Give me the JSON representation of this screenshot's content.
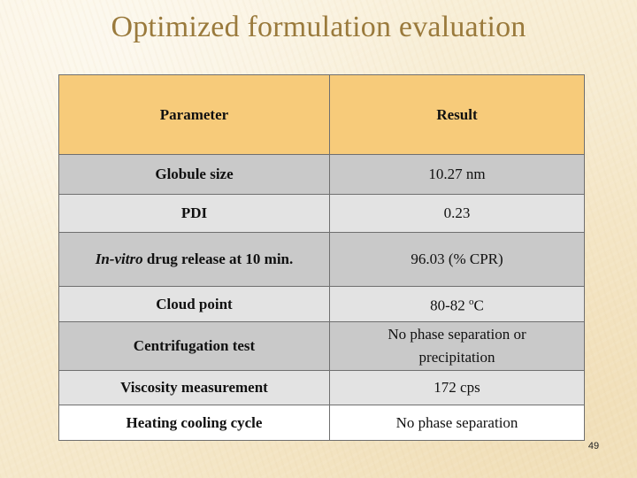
{
  "slide": {
    "title": "Optimized formulation evaluation",
    "page_number": "49"
  },
  "table": {
    "headers": {
      "parameter": "Parameter",
      "result": "Result"
    },
    "rows": [
      {
        "parameter": "Globule size",
        "result": "10.27 nm"
      },
      {
        "parameter": "PDI",
        "result": "0.23"
      },
      {
        "parameter_italic": "In-vitro",
        "parameter_rest": " drug release at 10 min.",
        "result": "96.03 (% CPR)"
      },
      {
        "parameter": "Cloud point",
        "result_value": "80-82 ",
        "result_degree": "o",
        "result_unit": "C"
      },
      {
        "parameter": "Centrifugation test",
        "result_line1": "No phase separation or",
        "result_line2": "precipitation"
      },
      {
        "parameter": "Viscosity measurement",
        "result": "172 cps"
      },
      {
        "parameter": "Heating cooling cycle",
        "result": "No phase separation"
      }
    ]
  },
  "colors": {
    "header_fill": "#f7cb7a",
    "row_dark": "#c9c9c9",
    "row_light": "#e3e3e3",
    "title_color": "#9a7a3c"
  }
}
